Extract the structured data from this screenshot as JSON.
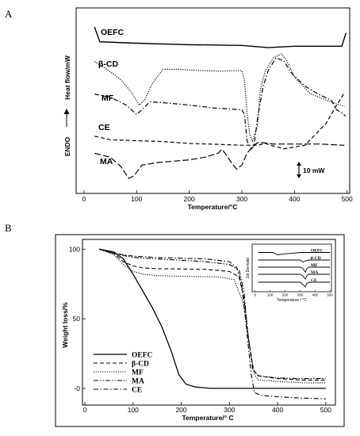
{
  "chart_data": [
    {
      "panel": "A",
      "type": "line",
      "xlabel": "Temperature/°C",
      "ylabel": "Heat flow/mW",
      "y_direction_label": "ENDO",
      "scale_label": "10 mW",
      "xlim": [
        -15,
        505
      ],
      "xticks": [
        "0",
        "100",
        "200",
        "300",
        "400",
        "500"
      ],
      "grid": false,
      "series": [
        {
          "name": "OEFC",
          "style": "solid",
          "points": [
            [
              20,
              0.9
            ],
            [
              30,
              0.8
            ],
            [
              100,
              0.79
            ],
            [
              200,
              0.78
            ],
            [
              300,
              0.775
            ],
            [
              350,
              0.76
            ],
            [
              400,
              0.77
            ],
            [
              490,
              0.77
            ],
            [
              498,
              0.86
            ]
          ]
        },
        {
          "name": "β-CD",
          "style": "dotted",
          "points": [
            [
              20,
              0.62
            ],
            [
              40,
              0.57
            ],
            [
              70,
              0.48
            ],
            [
              90,
              0.38
            ],
            [
              105,
              0.28
            ],
            [
              115,
              0.32
            ],
            [
              130,
              0.45
            ],
            [
              150,
              0.56
            ],
            [
              180,
              0.56
            ],
            [
              220,
              0.55
            ],
            [
              260,
              0.545
            ],
            [
              300,
              0.55
            ],
            [
              305,
              0.47
            ],
            [
              310,
              0.22
            ],
            [
              315,
              0.05
            ],
            [
              320,
              0.0
            ],
            [
              330,
              0.12
            ],
            [
              335,
              0.4
            ],
            [
              345,
              0.55
            ],
            [
              360,
              0.65
            ],
            [
              375,
              0.68
            ],
            [
              385,
              0.63
            ],
            [
              400,
              0.5
            ],
            [
              430,
              0.37
            ],
            [
              460,
              0.32
            ],
            [
              480,
              0.29
            ],
            [
              495,
              0.27
            ]
          ]
        },
        {
          "name": "MF",
          "style": "dash-dot",
          "points": [
            [
              20,
              0.35
            ],
            [
              50,
              0.33
            ],
            [
              80,
              0.28
            ],
            [
              95,
              0.235
            ],
            [
              100,
              0.22
            ],
            [
              110,
              0.25
            ],
            [
              125,
              0.3
            ],
            [
              150,
              0.295
            ],
            [
              200,
              0.28
            ],
            [
              250,
              0.26
            ],
            [
              300,
              0.25
            ],
            [
              305,
              0.22
            ],
            [
              310,
              0.05
            ],
            [
              318,
              0.0
            ],
            [
              323,
              0.02
            ],
            [
              330,
              0.2
            ],
            [
              340,
              0.39
            ],
            [
              350,
              0.5
            ],
            [
              365,
              0.58
            ],
            [
              380,
              0.56
            ],
            [
              395,
              0.48
            ],
            [
              420,
              0.4
            ],
            [
              445,
              0.35
            ],
            [
              470,
              0.31
            ],
            [
              480,
              0.25
            ],
            [
              490,
              0.23
            ],
            [
              497,
              0.21
            ]
          ]
        },
        {
          "name": "CE",
          "style": "dashed",
          "points": [
            [
              20,
              0.18
            ],
            [
              50,
              0.16
            ],
            [
              100,
              0.155
            ],
            [
              150,
              0.15
            ],
            [
              200,
              0.14
            ],
            [
              250,
              0.135
            ],
            [
              300,
              0.13
            ],
            [
              330,
              0.13
            ],
            [
              345,
              0.14
            ],
            [
              355,
              0.13
            ],
            [
              380,
              0.11
            ],
            [
              420,
              0.13
            ],
            [
              460,
              0.25
            ],
            [
              480,
              0.35
            ],
            [
              495,
              0.42
            ]
          ]
        },
        {
          "name": "MA",
          "style": "long-dash",
          "points": [
            [
              20,
              0.05
            ],
            [
              50,
              0.02
            ],
            [
              70,
              -0.05
            ],
            [
              85,
              -0.14
            ],
            [
              95,
              -0.12
            ],
            [
              110,
              -0.04
            ],
            [
              140,
              -0.02
            ],
            [
              200,
              0.0
            ],
            [
              230,
              0.02
            ],
            [
              255,
              0.05
            ],
            [
              262,
              0.08
            ],
            [
              270,
              0.04
            ],
            [
              280,
              -0.02
            ],
            [
              290,
              -0.07
            ],
            [
              300,
              -0.04
            ],
            [
              310,
              0.05
            ],
            [
              320,
              0.1
            ],
            [
              330,
              0.13
            ],
            [
              340,
              0.13
            ],
            [
              360,
              0.12
            ],
            [
              400,
              0.12
            ],
            [
              450,
              0.12
            ],
            [
              495,
              0.11
            ]
          ]
        }
      ]
    },
    {
      "panel": "B",
      "type": "line",
      "xlabel": "Temperature/° C",
      "ylabel": "Weight loss/%",
      "xlim": [
        -5,
        520
      ],
      "ylim": [
        -12,
        107
      ],
      "xticks": [
        "0",
        "100",
        "200",
        "300",
        "400",
        "500"
      ],
      "yticks": [
        "0",
        "50",
        "100"
      ],
      "grid": false,
      "legend_position": "lower-left",
      "series": [
        {
          "name": "OEFC",
          "style": "solid",
          "points": [
            [
              30,
              100
            ],
            [
              60,
              98
            ],
            [
              80,
              93
            ],
            [
              100,
              82
            ],
            [
              120,
              70
            ],
            [
              140,
              58
            ],
            [
              160,
              44
            ],
            [
              180,
              26
            ],
            [
              195,
              10
            ],
            [
              210,
              3
            ],
            [
              230,
              1
            ],
            [
              260,
              0
            ],
            [
              300,
              0
            ],
            [
              350,
              0
            ],
            [
              400,
              0
            ],
            [
              450,
              0
            ],
            [
              500,
              0
            ]
          ]
        },
        {
          "name": "β-CD",
          "style": "dashed",
          "points": [
            [
              30,
              100
            ],
            [
              60,
              97
            ],
            [
              80,
              91
            ],
            [
              100,
              88
            ],
            [
              120,
              86.5
            ],
            [
              150,
              86
            ],
            [
              250,
              85.5
            ],
            [
              300,
              84
            ],
            [
              320,
              80
            ],
            [
              330,
              65
            ],
            [
              340,
              35
            ],
            [
              350,
              13
            ],
            [
              360,
              9
            ],
            [
              400,
              7
            ],
            [
              450,
              6
            ],
            [
              500,
              6
            ]
          ]
        },
        {
          "name": "MF",
          "style": "dotted",
          "points": [
            [
              30,
              100
            ],
            [
              60,
              96
            ],
            [
              80,
              89
            ],
            [
              100,
              84
            ],
            [
              120,
              82
            ],
            [
              150,
              81
            ],
            [
              200,
              80.5
            ],
            [
              280,
              80
            ],
            [
              310,
              78
            ],
            [
              330,
              60
            ],
            [
              342,
              30
            ],
            [
              352,
              10
            ],
            [
              360,
              6
            ],
            [
              400,
              5
            ],
            [
              450,
              4
            ],
            [
              500,
              4
            ]
          ]
        },
        {
          "name": "MA",
          "style": "dash-dot-dot",
          "points": [
            [
              30,
              100
            ],
            [
              60,
              97
            ],
            [
              100,
              94
            ],
            [
              150,
              93
            ],
            [
              200,
              92
            ],
            [
              250,
              91
            ],
            [
              300,
              89
            ],
            [
              320,
              85
            ],
            [
              330,
              70
            ],
            [
              338,
              40
            ],
            [
              348,
              14
            ],
            [
              360,
              9
            ],
            [
              400,
              7.5
            ],
            [
              450,
              7
            ],
            [
              500,
              7
            ]
          ]
        },
        {
          "name": "CE",
          "style": "dash-dot",
          "points": [
            [
              30,
              100
            ],
            [
              60,
              97
            ],
            [
              100,
              95
            ],
            [
              150,
              94
            ],
            [
              200,
              93.5
            ],
            [
              250,
              93
            ],
            [
              300,
              91
            ],
            [
              315,
              87
            ],
            [
              325,
              75
            ],
            [
              335,
              45
            ],
            [
              345,
              10
            ],
            [
              352,
              -3
            ],
            [
              365,
              -5
            ],
            [
              400,
              -6
            ],
            [
              450,
              -7
            ],
            [
              500,
              -7.5
            ]
          ]
        }
      ],
      "inset": {
        "ylabel": "1st Derivate",
        "xlabel": "Temperature / °C",
        "xlim": [
          -20,
          510
        ],
        "xticks": [
          "0",
          "100",
          "200",
          "300",
          "400",
          "500"
        ],
        "series": [
          {
            "name": "OEFC",
            "points": [
              [
                20,
                0
              ],
              [
                120,
                0
              ],
              [
                150,
                -0.5
              ],
              [
                180,
                -0.35
              ],
              [
                250,
                -0.15
              ],
              [
                300,
                0
              ],
              [
                500,
                0
              ]
            ]
          },
          {
            "name": "β-CD",
            "points": [
              [
                20,
                0
              ],
              [
                300,
                0
              ],
              [
                320,
                -0.4
              ],
              [
                335,
                -0.2
              ],
              [
                360,
                0
              ],
              [
                500,
                0
              ]
            ]
          },
          {
            "name": "MF",
            "points": [
              [
                20,
                0
              ],
              [
                300,
                0
              ],
              [
                320,
                -0.3
              ],
              [
                335,
                -1.1
              ],
              [
                345,
                -0.3
              ],
              [
                360,
                0
              ],
              [
                500,
                0
              ]
            ]
          },
          {
            "name": "MA",
            "points": [
              [
                20,
                0
              ],
              [
                300,
                0
              ],
              [
                320,
                -0.4
              ],
              [
                335,
                -1.0
              ],
              [
                345,
                -0.3
              ],
              [
                360,
                0
              ],
              [
                500,
                0
              ]
            ]
          },
          {
            "name": "CE",
            "points": [
              [
                20,
                0
              ],
              [
                300,
                0
              ],
              [
                320,
                -0.5
              ],
              [
                335,
                -1.0
              ],
              [
                345,
                -0.3
              ],
              [
                360,
                0
              ],
              [
                500,
                0
              ]
            ]
          }
        ]
      }
    }
  ]
}
